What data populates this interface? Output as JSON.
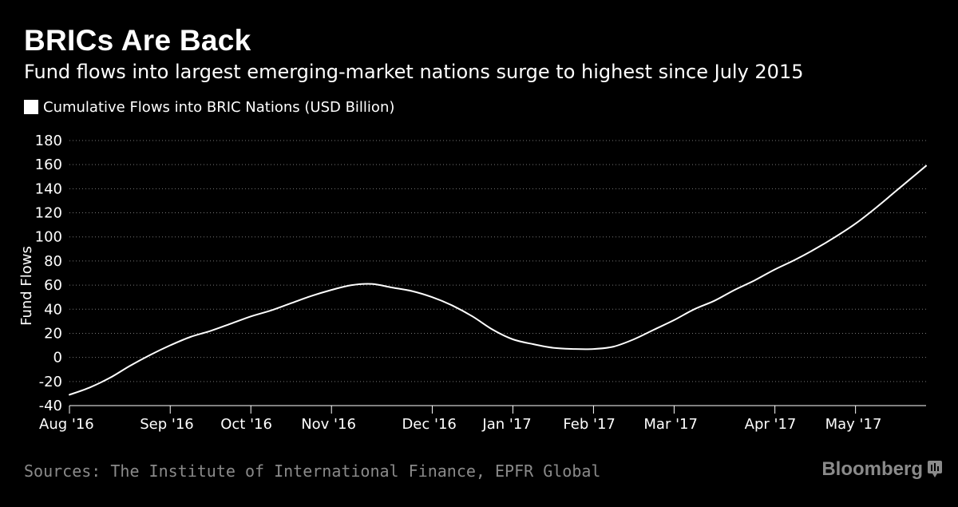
{
  "header": {
    "title": "BRICs Are Back",
    "subtitle": "Fund flows into largest emerging-market nations surge to highest since July 2015"
  },
  "legend": {
    "label": "Cumulative Flows into BRIC Nations (USD Billion)"
  },
  "footer": {
    "source": "Sources: The Institute of International Finance, EPFR Global",
    "brand": "Bloomberg",
    "brand_icon": "bloomberg-terminal-icon"
  },
  "colors": {
    "background": "#000000",
    "line": "#ffffff",
    "grid": "#777777",
    "muted": "#8a8a8a"
  },
  "chart_data": {
    "type": "line",
    "title": "BRICs Are Back",
    "ylabel": "Fund Flows",
    "xlabel": "",
    "ylim": [
      -40,
      180
    ],
    "yticks": [
      180,
      160,
      140,
      120,
      100,
      80,
      60,
      40,
      20,
      0,
      -20,
      -40
    ],
    "grid": true,
    "legend_position": "top-left",
    "xlim_weeks": [
      0,
      42.5
    ],
    "xticks": [
      {
        "label": "Aug '16",
        "week": 0
      },
      {
        "label": "Sep '16",
        "week": 5
      },
      {
        "label": "Oct '16",
        "week": 9
      },
      {
        "label": "Nov '16",
        "week": 13
      },
      {
        "label": "Dec '16",
        "week": 18
      },
      {
        "label": "Jan '17",
        "week": 22
      },
      {
        "label": "Feb '17",
        "week": 26
      },
      {
        "label": "Mar '17",
        "week": 30
      },
      {
        "label": "Apr '17",
        "week": 35
      },
      {
        "label": "May '17",
        "week": 39
      }
    ],
    "series": [
      {
        "name": "Cumulative Flows into BRIC Nations (USD Billion)",
        "x_weeks": [
          0,
          1,
          2,
          3,
          4,
          5,
          6,
          7,
          8,
          9,
          10,
          11,
          12,
          13,
          14,
          15,
          16,
          17,
          18,
          19,
          20,
          21,
          22,
          23,
          24,
          25,
          26,
          27,
          28,
          29,
          30,
          31,
          32,
          33,
          34,
          35,
          36,
          37,
          38,
          39,
          40,
          41,
          42.5
        ],
        "values": [
          -31,
          -25,
          -17,
          -7,
          2,
          10,
          17,
          22,
          28,
          34,
          39,
          45,
          51,
          56,
          60,
          61,
          58,
          55,
          50,
          43,
          34,
          23,
          15,
          11,
          8,
          7,
          7,
          9,
          15,
          23,
          31,
          40,
          47,
          56,
          64,
          73,
          81,
          90,
          100,
          111,
          124,
          138,
          159
        ]
      }
    ]
  }
}
